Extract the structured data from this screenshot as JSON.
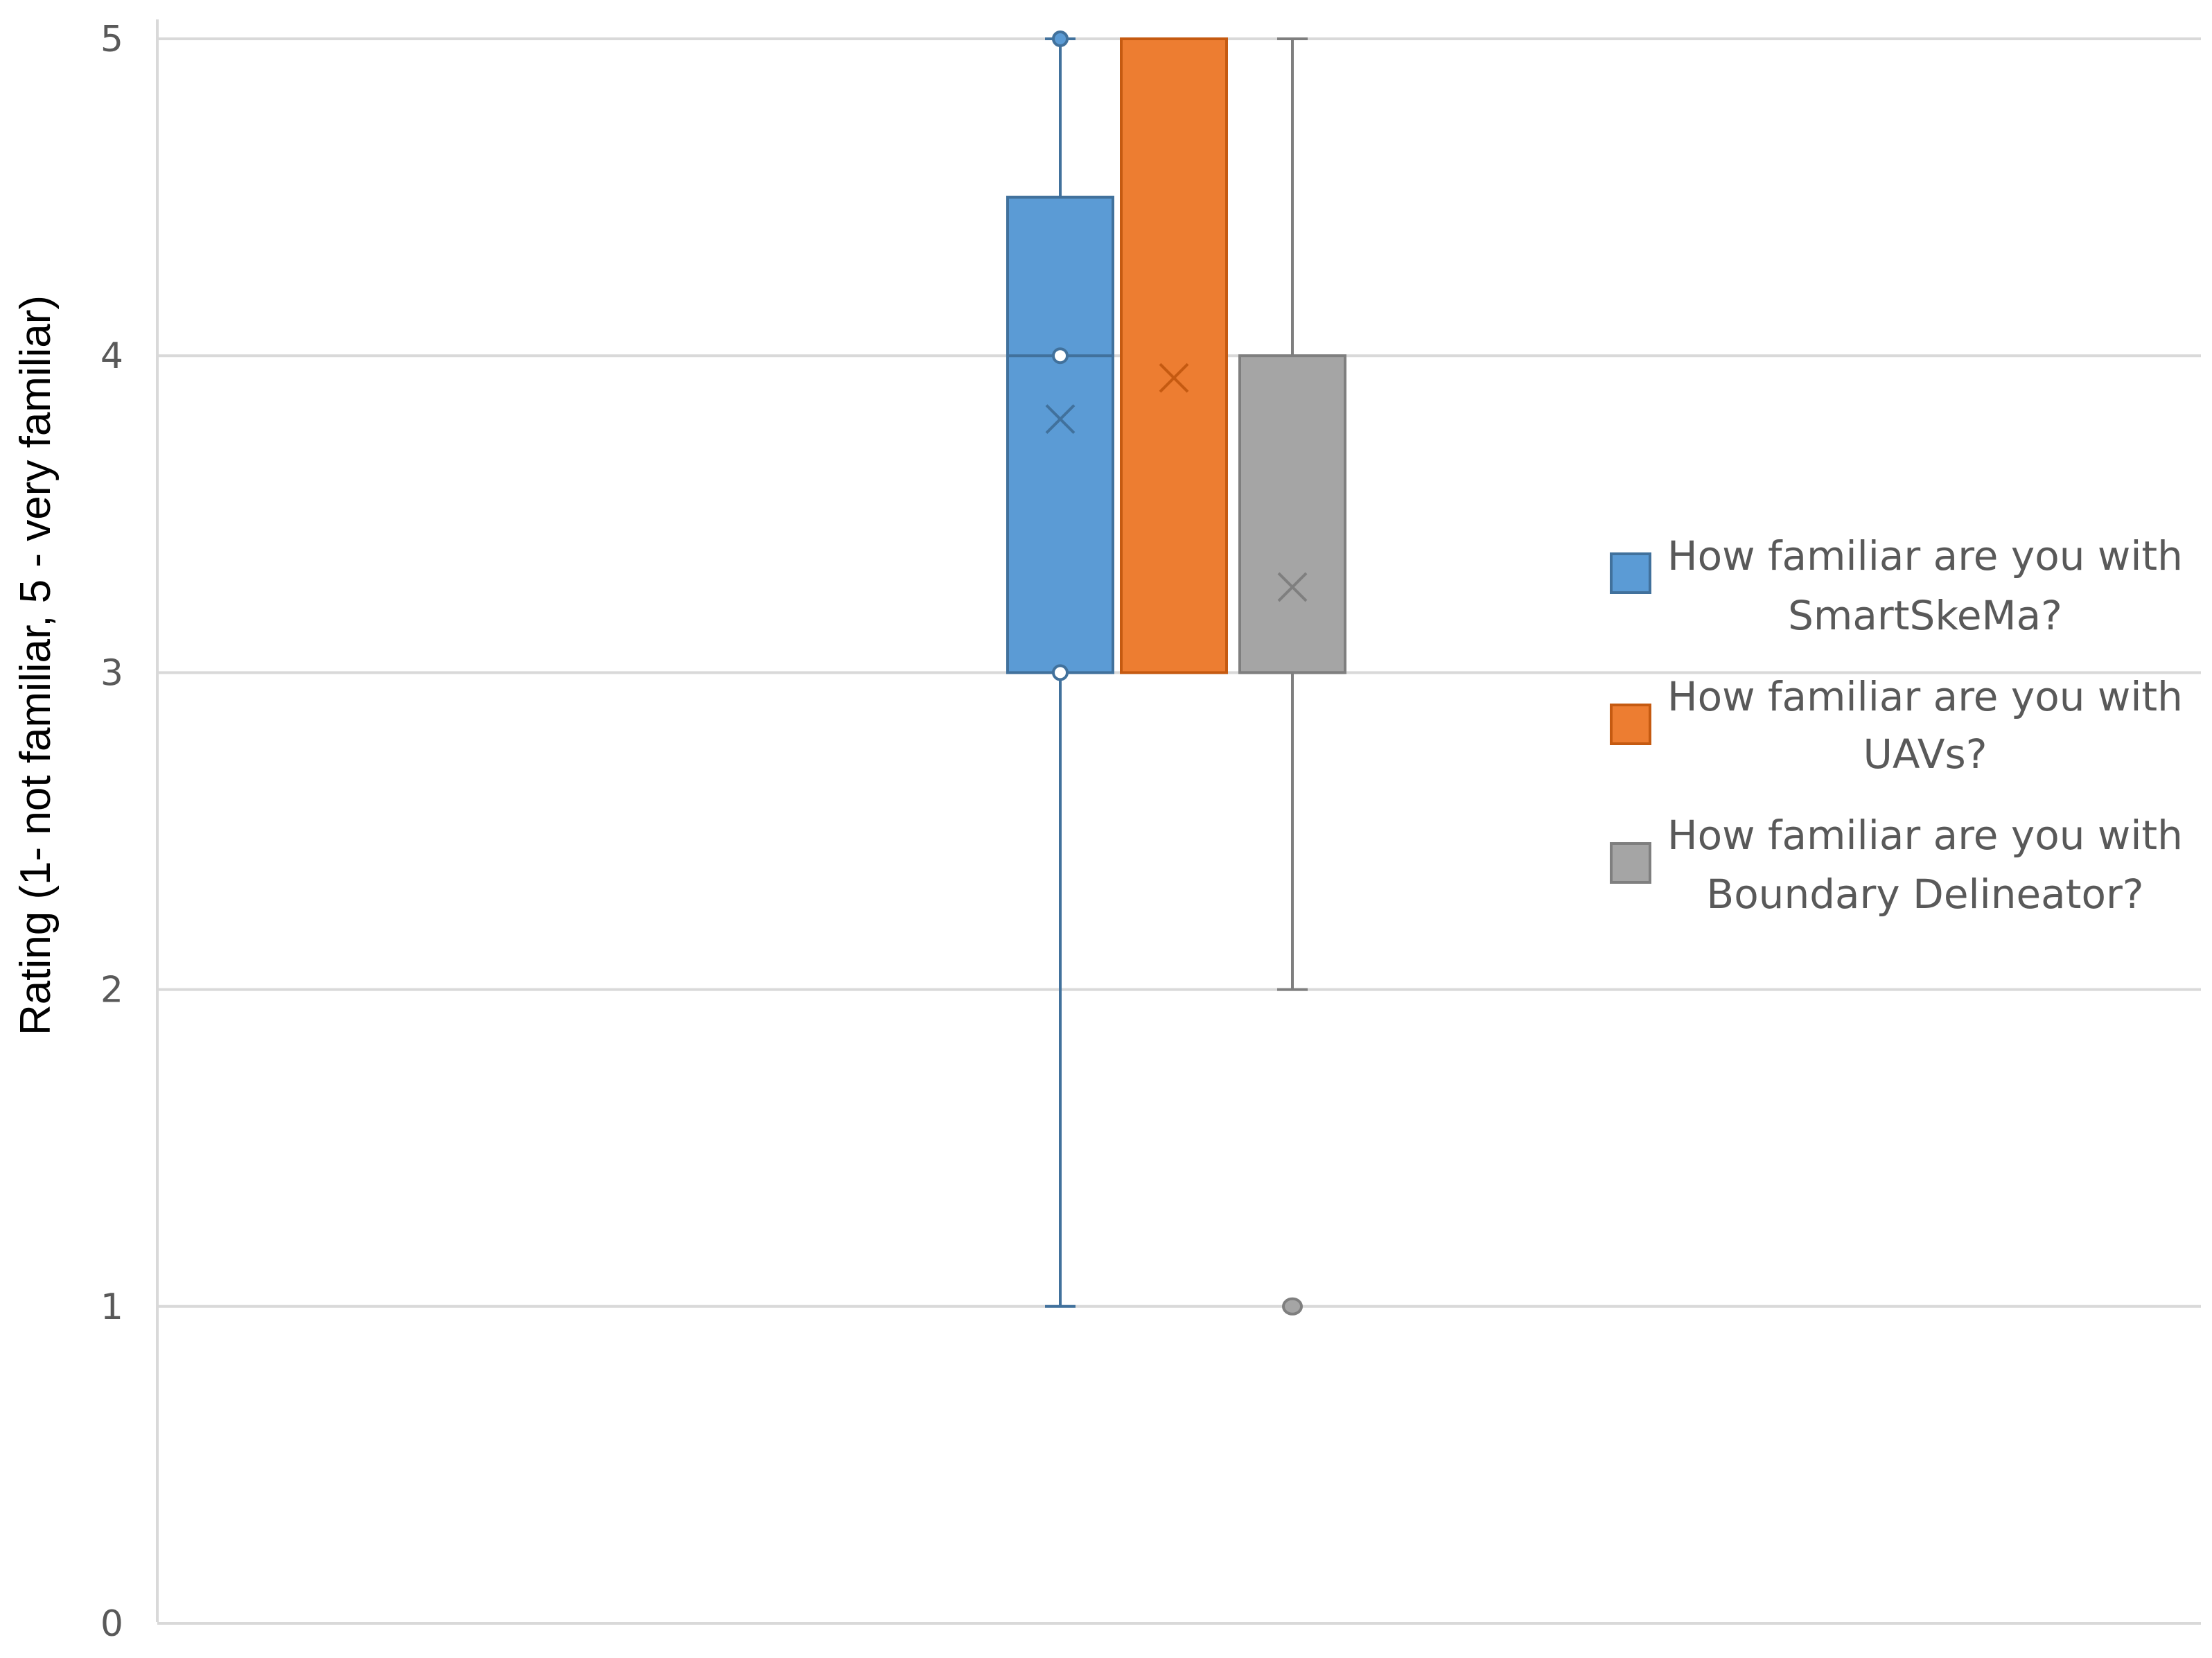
{
  "chart_data": {
    "type": "box",
    "title": "",
    "xlabel": "",
    "ylabel": "Rating  (1- not familiar,  5 - very familiar)",
    "ylim": [
      0,
      5
    ],
    "yticks": [
      0,
      1,
      2,
      3,
      4,
      5
    ],
    "grid": true,
    "legend_position": "right",
    "series": [
      {
        "name": "How familiar are you with SmartSkeMa?",
        "legend_lines": [
          "How familiar are you with",
          "SmartSkeMa?"
        ],
        "color": "#5B9BD5",
        "border": "#41719C",
        "min": 1,
        "q1": 3,
        "median": 4,
        "q3": 4.5,
        "max": 5,
        "mean": 3.8,
        "points": [
          5,
          4,
          3
        ],
        "outliers": []
      },
      {
        "name": "How familiar are you with UAVs?",
        "legend_lines": [
          "How familiar are you with",
          "UAVs?"
        ],
        "color": "#ED7D31",
        "border": "#C55A11",
        "min": 3,
        "q1": 3,
        "median": 5,
        "q3": 5,
        "max": 5,
        "mean": 3.93,
        "points": [],
        "outliers": []
      },
      {
        "name": "How familiar are you with Boundary Delineator?",
        "legend_lines": [
          "How familiar are you with",
          "Boundary Delineator?"
        ],
        "color": "#A5A5A5",
        "border": "#7F7F7F",
        "min": 2,
        "q1": 3,
        "median": 3,
        "q3": 4,
        "max": 5,
        "mean": 3.27,
        "points": [],
        "outliers": [
          1
        ]
      }
    ]
  }
}
